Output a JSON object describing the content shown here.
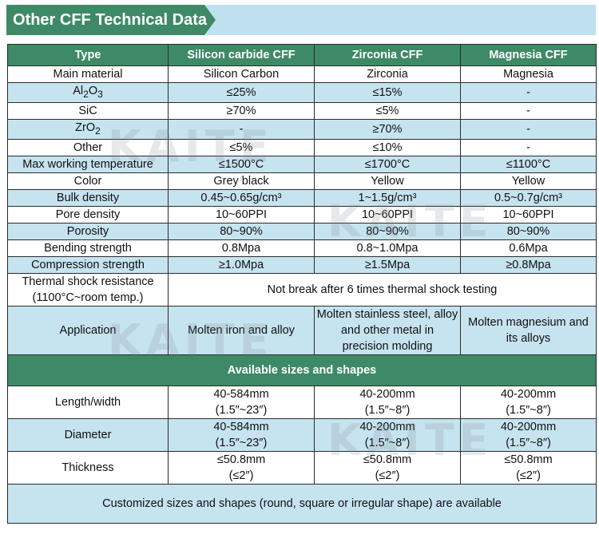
{
  "page": {
    "title": "Other CFF Technical Data",
    "watermark": "KAITE",
    "colors": {
      "header_green": "#3e8a66",
      "banner_blue": "#bfe0ef",
      "row_blue": "#c6e3f0"
    }
  },
  "table": {
    "headers": [
      "Type",
      "Silicon carbide CFF",
      "Zirconia CFF",
      "Magnesia CFF"
    ],
    "rows": {
      "main_material": [
        "Main material",
        "Silicon Carbon",
        "Zirconia",
        "Magnesia"
      ],
      "al2o3": [
        "Al2O3",
        "≤25%",
        "≤15%",
        "-"
      ],
      "sic": [
        "SiC",
        "≥70%",
        "≤5%",
        "-"
      ],
      "zro2": [
        "ZrO2",
        "-",
        "≥70%",
        "-"
      ],
      "other": [
        "Other",
        "≤5%",
        "≤10%",
        "-"
      ],
      "max_temp": [
        "Max working temperature",
        "≤1500°C",
        "≤1700°C",
        "≤1100°C"
      ],
      "color": [
        "Color",
        "Grey black",
        "Yellow",
        "Yellow"
      ],
      "bulk_density": [
        "Bulk density",
        "0.45~0.65g/cm³",
        "1~1.5g/cm³",
        "0.5~0.7g/cm³"
      ],
      "pore_density": [
        "Pore density",
        "10~60PPI",
        "10~60PPI",
        "10~60PPI"
      ],
      "porosity": [
        "Porosity",
        "80~90%",
        "80~90%",
        "80~90%"
      ],
      "bending": [
        "Bending strength",
        "0.8Mpa",
        "0.8~1.0Mpa",
        "0.6Mpa"
      ],
      "compression": [
        "Compression strength",
        "≥1.0Mpa",
        "≥1.5Mpa",
        "≥0.8Mpa"
      ]
    },
    "thermal_shock": {
      "label_line1": "Thermal shock resistance",
      "label_line2": "(1100°C~room temp.)",
      "value": "Not break after 6 times thermal shock testing"
    },
    "application": {
      "label": "Application",
      "sic": "Molten iron and alloy",
      "zirconia": "Molten stainless steel, alloy and other metal in precision molding",
      "magnesia": "Molten magnesium and its alloys"
    },
    "sizes_section": "Available sizes and shapes",
    "sizes": {
      "length": {
        "label": "Length/width",
        "sic": [
          "40-584mm",
          "(1.5″~23″)"
        ],
        "zirconia": [
          "40-200mm",
          "(1.5″~8″)"
        ],
        "magnesia": [
          "40-200mm",
          "(1.5″~8″)"
        ]
      },
      "diameter": {
        "label": "Diameter",
        "sic": [
          "40-584mm",
          "(1.5″~23″)"
        ],
        "zirconia": [
          "40-200mm",
          "(1.5″~8″)"
        ],
        "magnesia": [
          "40-200mm",
          "(1.5″~8″)"
        ]
      },
      "thickness": {
        "label": "Thickness",
        "sic": [
          "≤50.8mm",
          "(≤2″)"
        ],
        "zirconia": [
          "≤50.8mm",
          "(≤2″)"
        ],
        "magnesia": [
          "≤50.8mm",
          "(≤2″)"
        ]
      }
    },
    "footer": "Customized sizes and shapes (round, square or irregular shape) are available"
  }
}
